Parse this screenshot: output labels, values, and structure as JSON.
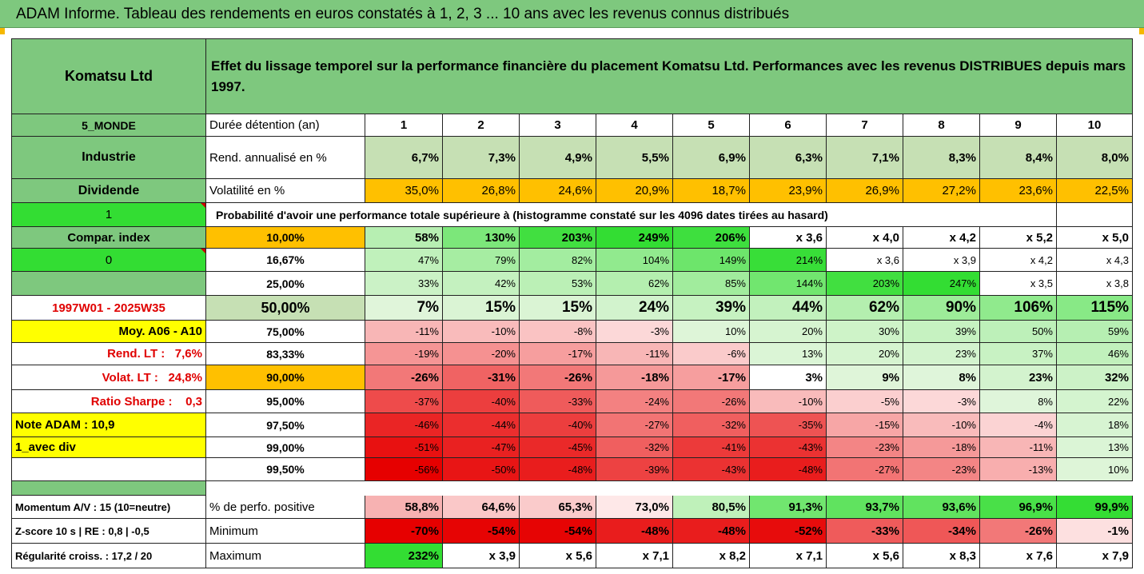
{
  "title": "ADAM Informe. Tableau des rendements en euros constatés à 1, 2, 3 ... 10 ans avec les revenus connus distribués",
  "header": {
    "company": "Komatsu Ltd",
    "description": "Effet du lissage temporel sur la performance financière du placement Komatsu Ltd. Performances avec les revenus DISTRIBUES depuis mars 1997."
  },
  "sidebar": {
    "zone": "5_MONDE",
    "sector": "Industrie",
    "dividend_label": "Dividende",
    "value_1": "1",
    "compar_index": "Compar. index",
    "value_0": "0",
    "period": "1997W01 - 2025W35",
    "moy": "Moy. A06 - A10",
    "rend_lt_label": "Rend. LT :",
    "rend_lt_value": "7,6%",
    "volat_lt_label": "Volat. LT :",
    "volat_lt_value": "24,8%",
    "sharpe_label": "Ratio Sharpe :",
    "sharpe_value": "0,3",
    "note": "Note ADAM : 10,9",
    "mode": "1_avec div"
  },
  "labels": {
    "duree": "Durée détention (an)",
    "rend": "Rend. annualisé en %",
    "volat": "Volatilité en %",
    "probabilite": "Probabilité d'avoir une performance totale supérieure à (histogramme constaté sur les 4096 dates tirées au hasard)"
  },
  "years": [
    "1",
    "2",
    "3",
    "4",
    "5",
    "6",
    "7",
    "8",
    "9",
    "10"
  ],
  "rend": [
    "6,7%",
    "7,3%",
    "4,9%",
    "5,5%",
    "6,9%",
    "6,3%",
    "7,1%",
    "8,3%",
    "8,4%",
    "8,0%"
  ],
  "volat": [
    "35,0%",
    "26,8%",
    "24,6%",
    "20,9%",
    "18,7%",
    "23,9%",
    "26,9%",
    "27,2%",
    "23,6%",
    "22,5%"
  ],
  "prob_rows": [
    {
      "pct": "10,00%",
      "values": [
        "58%",
        "130%",
        "203%",
        "249%",
        "206%",
        "x 3,6",
        "x 4,0",
        "x 4,2",
        "x 5,2",
        "x 5,0"
      ]
    },
    {
      "pct": "16,67%",
      "values": [
        "47%",
        "79%",
        "82%",
        "104%",
        "149%",
        "214%",
        "x 3,6",
        "x 3,9",
        "x 4,2",
        "x 4,3"
      ]
    },
    {
      "pct": "25,00%",
      "values": [
        "33%",
        "42%",
        "53%",
        "62%",
        "85%",
        "144%",
        "203%",
        "247%",
        "x 3,5",
        "x 3,8"
      ]
    },
    {
      "pct": "50,00%",
      "values": [
        "7%",
        "15%",
        "15%",
        "24%",
        "39%",
        "44%",
        "62%",
        "90%",
        "106%",
        "115%"
      ]
    },
    {
      "pct": "75,00%",
      "values": [
        "-11%",
        "-10%",
        "-8%",
        "-3%",
        "10%",
        "20%",
        "30%",
        "39%",
        "50%",
        "59%"
      ]
    },
    {
      "pct": "83,33%",
      "values": [
        "-19%",
        "-20%",
        "-17%",
        "-11%",
        "-6%",
        "13%",
        "20%",
        "23%",
        "37%",
        "46%"
      ]
    },
    {
      "pct": "90,00%",
      "values": [
        "-26%",
        "-31%",
        "-26%",
        "-18%",
        "-17%",
        "3%",
        "9%",
        "8%",
        "23%",
        "32%"
      ]
    },
    {
      "pct": "95,00%",
      "values": [
        "-37%",
        "-40%",
        "-33%",
        "-24%",
        "-26%",
        "-10%",
        "-5%",
        "-3%",
        "8%",
        "22%"
      ]
    },
    {
      "pct": "97,50%",
      "values": [
        "-46%",
        "-44%",
        "-40%",
        "-27%",
        "-32%",
        "-35%",
        "-15%",
        "-10%",
        "-4%",
        "18%"
      ]
    },
    {
      "pct": "99,00%",
      "values": [
        "-51%",
        "-47%",
        "-45%",
        "-32%",
        "-41%",
        "-43%",
        "-23%",
        "-18%",
        "-11%",
        "13%"
      ]
    },
    {
      "pct": "99,50%",
      "values": [
        "-56%",
        "-50%",
        "-48%",
        "-39%",
        "-43%",
        "-48%",
        "-27%",
        "-23%",
        "-13%",
        "10%"
      ]
    }
  ],
  "bottom": [
    {
      "side": "Momentum A/V : 15 (10=neutre)",
      "label": "% de perfo. positive",
      "values": [
        "58,8%",
        "64,6%",
        "65,3%",
        "73,0%",
        "80,5%",
        "91,3%",
        "93,7%",
        "93,6%",
        "96,9%",
        "99,9%"
      ]
    },
    {
      "side": "Z-score 10 s  | RE : 0,8 | -0,5",
      "label": "Minimum",
      "values": [
        "-70%",
        "-54%",
        "-54%",
        "-48%",
        "-48%",
        "-52%",
        "-33%",
        "-34%",
        "-26%",
        "-1%"
      ]
    },
    {
      "side": "Régularité croiss. : 17,2 / 20",
      "label": "Maximum",
      "values": [
        "232%",
        "x 3,9",
        "x 5,6",
        "x 7,1",
        "x 8,2",
        "x 7,1",
        "x 5,6",
        "x 8,3",
        "x 7,6",
        "x 7,9"
      ]
    }
  ],
  "colors": {
    "header_green": "#7ec87e",
    "rend_green": "#c6e0b4",
    "volat_orange": "#ffc000",
    "highlight_yellow": "#ffff00",
    "bright_green": "#33dd33",
    "dark_red": "#e00000",
    "period_red": "#e00000"
  }
}
